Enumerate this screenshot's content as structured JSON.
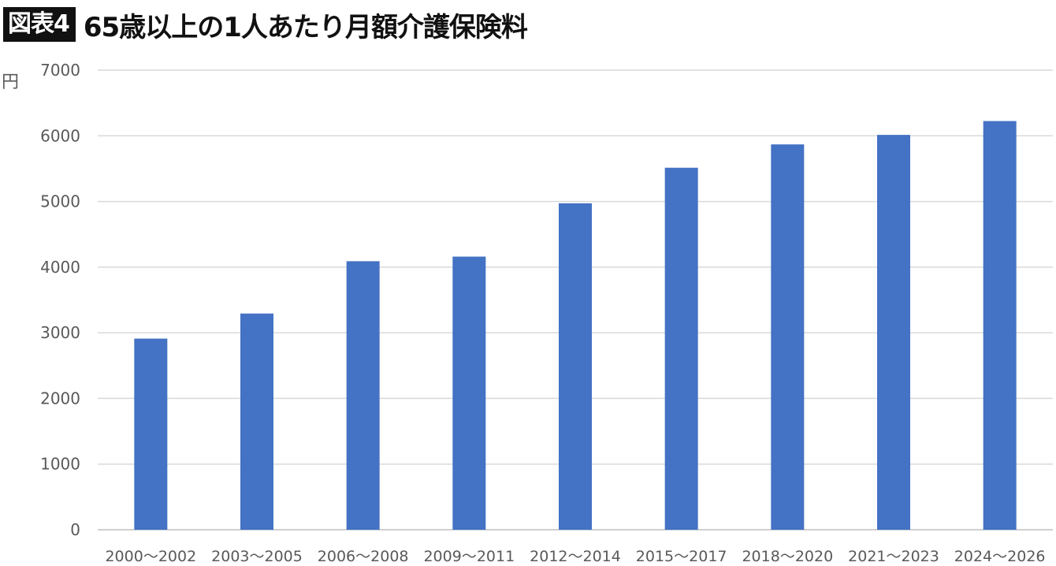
{
  "header": {
    "badge": "図表4",
    "title": "65歳以上の1人あたり月額介護保険料"
  },
  "chart_data": {
    "type": "bar",
    "title": "65歳以上の1人あたり月額介護保険料",
    "ylabel": "円",
    "xlabel": "",
    "ylim": [
      0,
      7000
    ],
    "yticks": [
      0,
      1000,
      2000,
      3000,
      4000,
      5000,
      6000,
      7000
    ],
    "grid": true,
    "legend": "none",
    "color": "#4472C4",
    "categories": [
      "2000～2002",
      "2003～2005",
      "2006～2008",
      "2009～2011",
      "2012～2014",
      "2015～2017",
      "2018～2020",
      "2021～2023",
      "2024～2026"
    ],
    "values": [
      2911,
      3293,
      4090,
      4160,
      4972,
      5514,
      5869,
      6014,
      6225
    ]
  }
}
